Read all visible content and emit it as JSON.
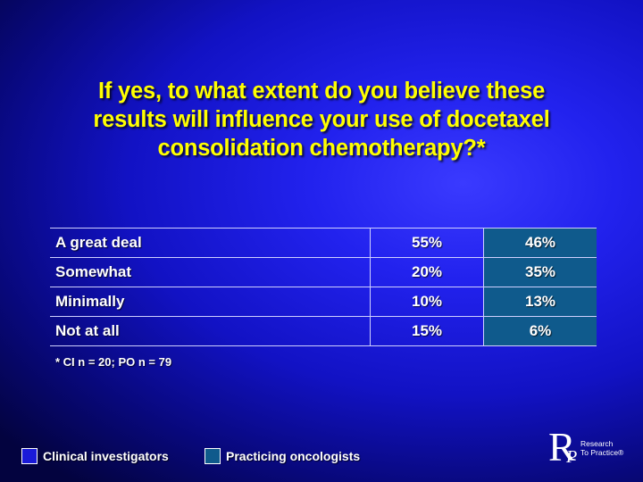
{
  "slide": {
    "title_lines": [
      "If yes, to what extent do you believe these",
      "results will influence your use of docetaxel",
      "consolidation chemotherapy?*"
    ],
    "rows": [
      {
        "label": "A great deal",
        "ci": "55%",
        "po": "46%"
      },
      {
        "label": "Somewhat",
        "ci": "20%",
        "po": "35%"
      },
      {
        "label": "Minimally",
        "ci": "10%",
        "po": "13%"
      },
      {
        "label": "Not at all",
        "ci": "15%",
        "po": "6%"
      }
    ],
    "footnote": "* CI n = 20; PO n = 79",
    "legend": {
      "ci_label": "Clinical investigators",
      "po_label": "Practicing oncologists"
    },
    "logo": {
      "letter_r": "R",
      "letter_p": "P",
      "line1": "Research",
      "line2": "To Practice®"
    }
  },
  "colors": {
    "title": "#ffff00",
    "text": "#ffffff",
    "po_fill": "#0f5a8c",
    "background": "#1212c4"
  }
}
